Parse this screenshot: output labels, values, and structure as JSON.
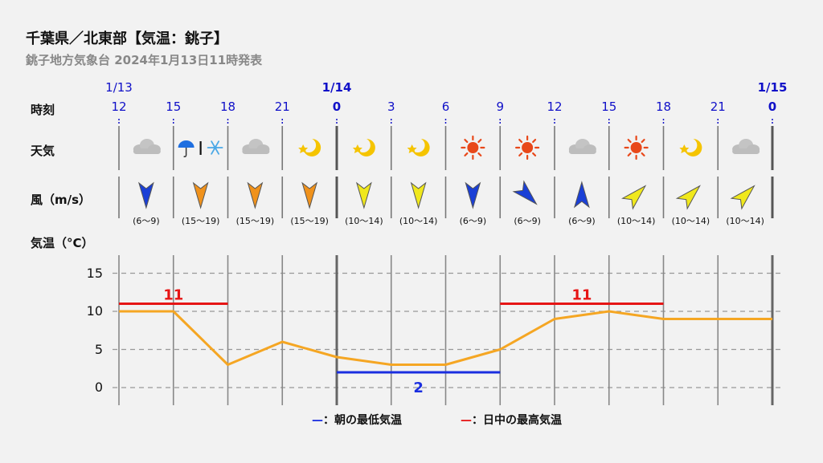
{
  "title": "千葉県／北東部【気温：銚子】",
  "subtitle": "銚子地方気象台 2024年1月13日11時発表",
  "row_labels": {
    "time": "時刻",
    "weather": "天気",
    "wind": "風（m/s）",
    "temp": "気温（°C）"
  },
  "dates": [
    {
      "label": "1/13",
      "bold": false,
      "slot": 0
    },
    {
      "label": "1/14",
      "bold": true,
      "slot": 4
    },
    {
      "label": "1/15",
      "bold": true,
      "slot": 12
    }
  ],
  "hours": [
    "12",
    "15",
    "18",
    "21",
    "0",
    "3",
    "6",
    "9",
    "12",
    "15",
    "18",
    "21",
    "0"
  ],
  "weather": [
    {
      "icon": "cloud-icon"
    },
    {
      "icon": "umbrella-rain-snow-icon"
    },
    {
      "icon": "cloud-icon"
    },
    {
      "icon": "moon-icon"
    },
    {
      "icon": "moon-icon"
    },
    {
      "icon": "moon-icon"
    },
    {
      "icon": "sun-icon"
    },
    {
      "icon": "sun-icon"
    },
    {
      "icon": "cloud-icon"
    },
    {
      "icon": "sun-icon"
    },
    {
      "icon": "moon-icon"
    },
    {
      "icon": "cloud-icon"
    }
  ],
  "wind": [
    {
      "range": "(6～9)",
      "dir": "N",
      "color": "#1a3fd6"
    },
    {
      "range": "(15～19)",
      "dir": "N",
      "color": "#f0921c"
    },
    {
      "range": "(15～19)",
      "dir": "N",
      "color": "#f0921c"
    },
    {
      "range": "(15～19)",
      "dir": "N",
      "color": "#f0921c"
    },
    {
      "range": "(10～14)",
      "dir": "N",
      "color": "#f0e81c"
    },
    {
      "range": "(10～14)",
      "dir": "N",
      "color": "#f0e81c"
    },
    {
      "range": "(6～9)",
      "dir": "N",
      "color": "#1a3fd6"
    },
    {
      "range": "(6～9)",
      "dir": "NW",
      "color": "#1a3fd6"
    },
    {
      "range": "(6～9)",
      "dir": "S",
      "color": "#1a3fd6"
    },
    {
      "range": "(10～14)",
      "dir": "SW",
      "color": "#f0e81c"
    },
    {
      "range": "(10～14)",
      "dir": "SW",
      "color": "#f0e81c"
    },
    {
      "range": "(10～14)",
      "dir": "SW",
      "color": "#f0e81c"
    }
  ],
  "legend": {
    "min_mark": "—",
    "min_label": "：朝の最低気温",
    "max_mark": "—",
    "max_label": "：日中の最高気温"
  },
  "colors": {
    "line": "#f5a623",
    "max": "#e61515",
    "min": "#1a2ee0",
    "axis_text": "#1010c8"
  },
  "chart_data": {
    "type": "line",
    "x": [
      "12",
      "15",
      "18",
      "21",
      "0",
      "3",
      "6",
      "9",
      "12",
      "15",
      "18",
      "21",
      "0"
    ],
    "ylim": [
      -2.5,
      17.5
    ],
    "yticks": [
      0,
      5,
      10,
      15
    ],
    "grid": true,
    "series": [
      {
        "values": [
          10,
          10,
          3,
          6,
          4,
          3,
          3,
          5,
          9,
          10,
          9,
          9,
          9
        ]
      }
    ],
    "annotations": [
      {
        "type": "max",
        "label": "11",
        "value": 11,
        "from": 0,
        "to": 2
      },
      {
        "type": "min",
        "label": "2",
        "value": 2,
        "from": 4,
        "to": 7
      },
      {
        "type": "max",
        "label": "11",
        "value": 11,
        "from": 7,
        "to": 10
      }
    ]
  }
}
